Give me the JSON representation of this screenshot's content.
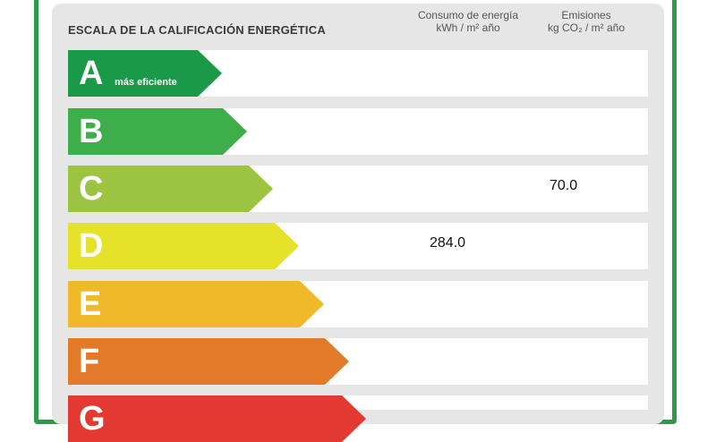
{
  "header": {
    "title": "ESCALA DE LA CALIFICACIÓN ENERGÉTICA",
    "energy_col": [
      "Consumo de energía",
      "kWh  / m² año"
    ],
    "emission_col": [
      "Emisiones",
      "kg CO₂ / m² año"
    ]
  },
  "ratings": [
    {
      "letter": "A",
      "note": "más eficiente",
      "color": "#1a9a48",
      "energy": "",
      "emission": ""
    },
    {
      "letter": "B",
      "note": "",
      "color": "#3eae4b",
      "energy": "",
      "emission": ""
    },
    {
      "letter": "C",
      "note": "",
      "color": "#9dc440",
      "energy": "",
      "emission": "70.0"
    },
    {
      "letter": "D",
      "note": "",
      "color": "#e6e22a",
      "energy": "284.0",
      "emission": ""
    },
    {
      "letter": "E",
      "note": "",
      "color": "#f0b92a",
      "energy": "",
      "emission": ""
    },
    {
      "letter": "F",
      "note": "",
      "color": "#e27a2a",
      "energy": "",
      "emission": ""
    },
    {
      "letter": "G",
      "note": "",
      "color": "#e23a30",
      "energy": "",
      "emission": ""
    }
  ]
}
